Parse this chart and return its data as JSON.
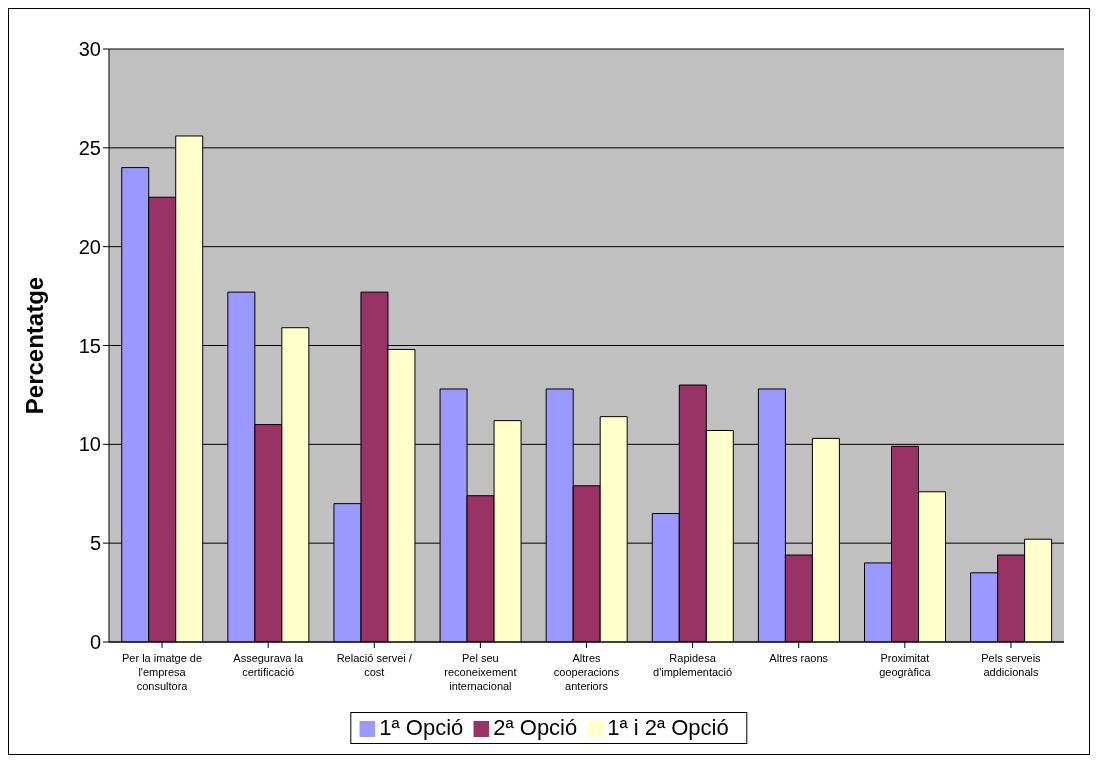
{
  "chart_data": {
    "type": "bar",
    "ylabel": "Percentatge",
    "categories": [
      "Per la imatge de l'empresa consultora",
      "Assegurava la certificació",
      "Relació servei / cost",
      "Pel seu reconeixement internacional",
      "Altres cooperacions anteriors",
      "Rapidesa d'implementació",
      "Altres raons",
      "Proximitat geogràfica",
      "Pels serveis addicionals"
    ],
    "series": [
      {
        "name": "1ª Opció",
        "color": "#9999ff",
        "values": [
          24.0,
          17.7,
          7.0,
          12.8,
          12.8,
          6.5,
          12.8,
          4.0,
          3.5
        ]
      },
      {
        "name": "2ª Opció",
        "color": "#993366",
        "values": [
          22.5,
          11.0,
          17.7,
          7.4,
          7.9,
          13.0,
          4.4,
          9.9,
          4.4
        ]
      },
      {
        "name": "1ª i 2ª Opció",
        "color": "#ffffcc",
        "values": [
          25.6,
          15.9,
          14.8,
          11.2,
          11.4,
          10.7,
          10.3,
          7.6,
          5.2
        ]
      }
    ],
    "ylim": [
      0,
      30
    ],
    "yticks": [
      0,
      5,
      10,
      15,
      20,
      25,
      30
    ],
    "grid": "y",
    "legend": "bottom"
  }
}
